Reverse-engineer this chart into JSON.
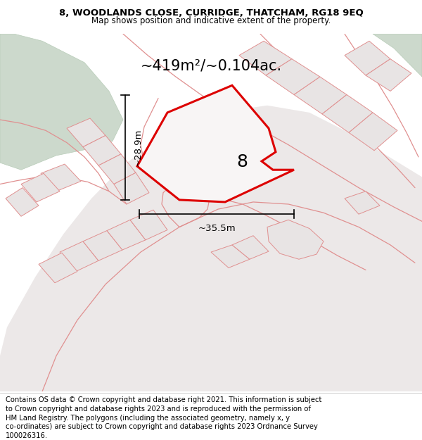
{
  "title_line1": "8, WOODLANDS CLOSE, CURRIDGE, THATCHAM, RG18 9EQ",
  "title_line2": "Map shows position and indicative extent of the property.",
  "area_text": "~419m²/~0.104ac.",
  "dim_width": "~35.5m",
  "dim_height": "~28.9m",
  "label_number": "8",
  "footer_lines": [
    "Contains OS data © Crown copyright and database right 2021. This information is subject",
    "to Crown copyright and database rights 2023 and is reproduced with the permission of",
    "HM Land Registry. The polygons (including the associated geometry, namely x, y",
    "co-ordinates) are subject to Crown copyright and database rights 2023 Ordnance Survey",
    "100026316."
  ],
  "bg_map_color": "#f0eeee",
  "bg_title_color": "#ffffff",
  "bg_footer_color": "#ffffff",
  "plot_fill_color": "#f8f5f5",
  "plot_edge_color": "#dd0000",
  "other_plots_color": "#e8e4e4",
  "other_edge_color": "#e09090",
  "green_area_color": "#ccd9cc",
  "green_edge_color": "#b8ccb8",
  "title_fontsize": 9.5,
  "subtitle_fontsize": 8.5,
  "area_fontsize": 15,
  "label_fontsize": 18,
  "dim_fontsize": 9.5,
  "footer_fontsize": 7.2
}
